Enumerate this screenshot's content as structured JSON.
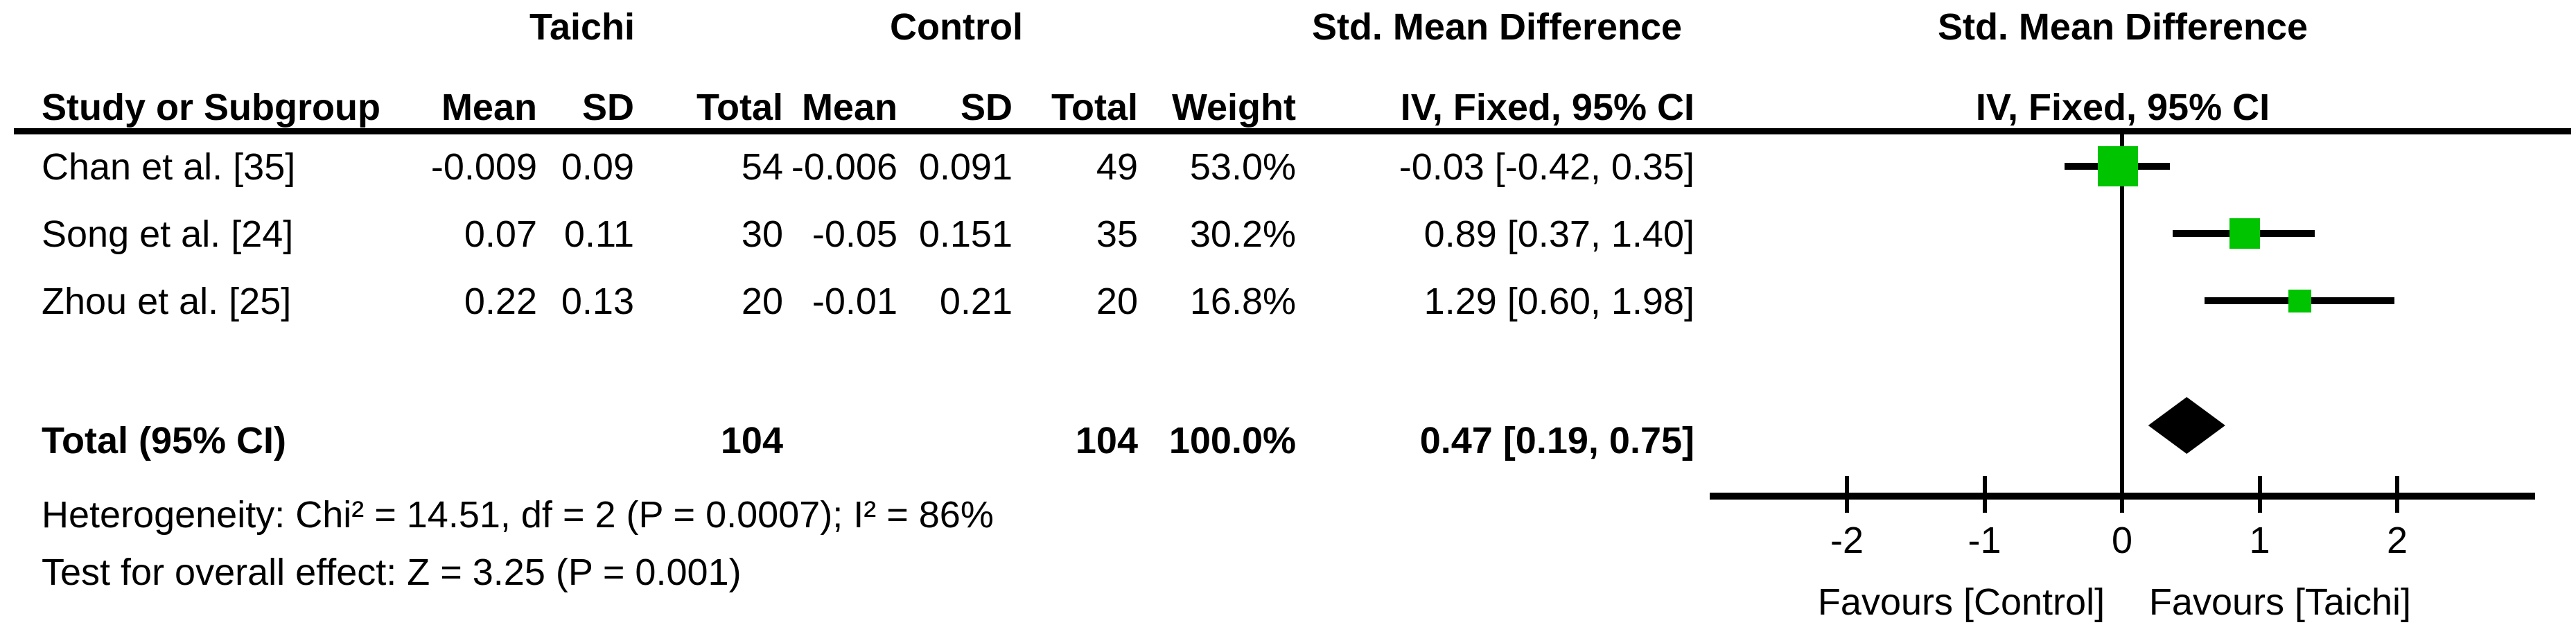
{
  "table": {
    "group_headers": {
      "taichi": "Taichi",
      "control": "Control",
      "smd_col": "Std. Mean Difference",
      "smd_plot": "Std. Mean Difference"
    },
    "col_headers": {
      "study": "Study or Subgroup",
      "mean_t": "Mean",
      "sd_t": "SD",
      "total_t": "Total",
      "mean_c": "Mean",
      "sd_c": "SD",
      "total_c": "Total",
      "weight": "Weight",
      "ci_col": "IV, Fixed, 95% CI",
      "ci_plot": "IV, Fixed, 95% CI"
    },
    "rows": [
      {
        "study": "Chan et al. [35]",
        "mean_t": "-0.009",
        "sd_t": "0.09",
        "total_t": "54",
        "mean_c": "-0.006",
        "sd_c": "0.091",
        "total_c": "49",
        "weight": "53.0%",
        "ci": "-0.03 [-0.42, 0.35]"
      },
      {
        "study": "Song et al. [24]",
        "mean_t": "0.07",
        "sd_t": "0.11",
        "total_t": "30",
        "mean_c": "-0.05",
        "sd_c": "0.151",
        "total_c": "35",
        "weight": "30.2%",
        "ci": "0.89 [0.37, 1.40]"
      },
      {
        "study": "Zhou et al. [25]",
        "mean_t": "0.22",
        "sd_t": "0.13",
        "total_t": "20",
        "mean_c": "-0.01",
        "sd_c": "0.21",
        "total_c": "20",
        "weight": "16.8%",
        "ci": "1.29 [0.60, 1.98]"
      }
    ],
    "total_row": {
      "label": "Total (95% CI)",
      "total_t": "104",
      "total_c": "104",
      "weight": "100.0%",
      "ci": "0.47 [0.19, 0.75]"
    },
    "footnotes": {
      "heterogeneity": "Heterogeneity: Chi² = 14.51, df = 2 (P = 0.0007); I² = 86%",
      "overall_effect": "Test for overall effect: Z = 3.25 (P = 0.001)"
    }
  },
  "chart_data": {
    "type": "scatter",
    "subtype": "forest-plot",
    "title": "Std. Mean Difference, IV, Fixed, 95% CI",
    "x_axis": {
      "ticks": [
        -2,
        -1,
        0,
        1,
        2
      ],
      "range": [
        -3,
        3
      ],
      "label_left": "Favours [Control]",
      "label_right": "Favours [Taichi]"
    },
    "studies": [
      {
        "name": "Chan et al. [35]",
        "taichi_mean": -0.009,
        "taichi_sd": 0.09,
        "taichi_n": 54,
        "control_mean": -0.006,
        "control_sd": 0.091,
        "control_n": 49,
        "weight_pct": 53.0,
        "smd": -0.03,
        "ci_low": -0.42,
        "ci_high": 0.35
      },
      {
        "name": "Song et al. [24]",
        "taichi_mean": 0.07,
        "taichi_sd": 0.11,
        "taichi_n": 30,
        "control_mean": -0.05,
        "control_sd": 0.151,
        "control_n": 35,
        "weight_pct": 30.2,
        "smd": 0.89,
        "ci_low": 0.37,
        "ci_high": 1.4
      },
      {
        "name": "Zhou et al. [25]",
        "taichi_mean": 0.22,
        "taichi_sd": 0.13,
        "taichi_n": 20,
        "control_mean": -0.01,
        "control_sd": 0.21,
        "control_n": 20,
        "weight_pct": 16.8,
        "smd": 1.29,
        "ci_low": 0.6,
        "ci_high": 1.98
      }
    ],
    "total": {
      "label": "Total (95% CI)",
      "taichi_n": 104,
      "control_n": 104,
      "weight_pct": 100.0,
      "smd": 0.47,
      "ci_low": 0.19,
      "ci_high": 0.75
    },
    "heterogeneity": {
      "chi2": 14.51,
      "df": 2,
      "p": 0.0007,
      "i2_pct": 86
    },
    "overall_effect": {
      "z": 3.25,
      "p": 0.001
    },
    "marker_color": "#00c400",
    "line_color": "#000000"
  }
}
